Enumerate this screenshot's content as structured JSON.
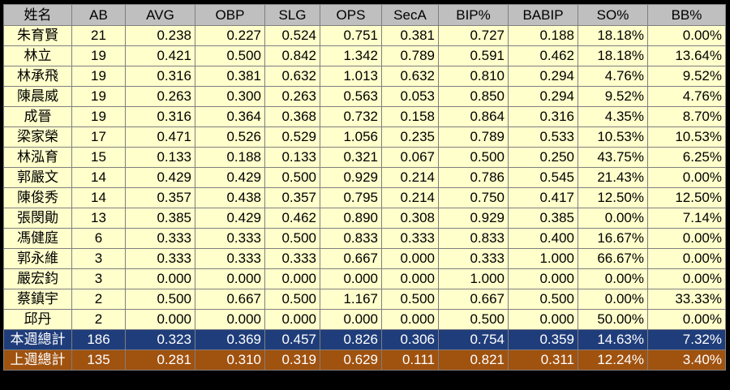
{
  "headers": [
    "姓名",
    "AB",
    "AVG",
    "OBP",
    "SLG",
    "OPS",
    "SecA",
    "BIP%",
    "BABIP",
    "SO%",
    "BB%"
  ],
  "rows": [
    [
      "朱育賢",
      "21",
      "0.238",
      "0.227",
      "0.524",
      "0.751",
      "0.381",
      "0.727",
      "0.188",
      "18.18%",
      "0.00%"
    ],
    [
      "林立",
      "19",
      "0.421",
      "0.500",
      "0.842",
      "1.342",
      "0.789",
      "0.591",
      "0.462",
      "18.18%",
      "13.64%"
    ],
    [
      "林承飛",
      "19",
      "0.316",
      "0.381",
      "0.632",
      "1.013",
      "0.632",
      "0.810",
      "0.294",
      "4.76%",
      "9.52%"
    ],
    [
      "陳晨威",
      "19",
      "0.263",
      "0.300",
      "0.263",
      "0.563",
      "0.053",
      "0.850",
      "0.294",
      "9.52%",
      "4.76%"
    ],
    [
      "成晉",
      "19",
      "0.316",
      "0.364",
      "0.368",
      "0.732",
      "0.158",
      "0.864",
      "0.316",
      "4.35%",
      "8.70%"
    ],
    [
      "梁家榮",
      "17",
      "0.471",
      "0.526",
      "0.529",
      "1.056",
      "0.235",
      "0.789",
      "0.533",
      "10.53%",
      "10.53%"
    ],
    [
      "林泓育",
      "15",
      "0.133",
      "0.188",
      "0.133",
      "0.321",
      "0.067",
      "0.500",
      "0.250",
      "43.75%",
      "6.25%"
    ],
    [
      "郭嚴文",
      "14",
      "0.429",
      "0.429",
      "0.500",
      "0.929",
      "0.214",
      "0.786",
      "0.545",
      "21.43%",
      "0.00%"
    ],
    [
      "陳俊秀",
      "14",
      "0.357",
      "0.438",
      "0.357",
      "0.795",
      "0.214",
      "0.750",
      "0.417",
      "12.50%",
      "12.50%"
    ],
    [
      "張閔勛",
      "13",
      "0.385",
      "0.429",
      "0.462",
      "0.890",
      "0.308",
      "0.929",
      "0.385",
      "0.00%",
      "7.14%"
    ],
    [
      "馮健庭",
      "6",
      "0.333",
      "0.333",
      "0.500",
      "0.833",
      "0.333",
      "0.833",
      "0.400",
      "16.67%",
      "0.00%"
    ],
    [
      "郭永維",
      "3",
      "0.333",
      "0.333",
      "0.333",
      "0.667",
      "0.000",
      "0.333",
      "1.000",
      "66.67%",
      "0.00%"
    ],
    [
      "嚴宏鈞",
      "3",
      "0.000",
      "0.000",
      "0.000",
      "0.000",
      "0.000",
      "1.000",
      "0.000",
      "0.00%",
      "0.00%"
    ],
    [
      "蔡鎮宇",
      "2",
      "0.500",
      "0.667",
      "0.500",
      "1.167",
      "0.500",
      "0.667",
      "0.500",
      "0.00%",
      "33.33%"
    ],
    [
      "邱丹",
      "2",
      "0.000",
      "0.000",
      "0.000",
      "0.000",
      "0.000",
      "0.500",
      "0.000",
      "50.00%",
      "0.00%"
    ]
  ],
  "totals": {
    "this_week": [
      "本週總計",
      "186",
      "0.323",
      "0.369",
      "0.457",
      "0.826",
      "0.306",
      "0.754",
      "0.359",
      "14.63%",
      "7.32%"
    ],
    "last_week": [
      "上週總計",
      "135",
      "0.281",
      "0.310",
      "0.319",
      "0.629",
      "0.111",
      "0.821",
      "0.311",
      "12.24%",
      "3.40%"
    ]
  },
  "colors": {
    "header_bg": "#bfbfbf",
    "row_bg": "#ffffcc",
    "this_week_bg": "#1f3d7a",
    "last_week_bg": "#a0520f",
    "frame_bg": "#000000"
  }
}
